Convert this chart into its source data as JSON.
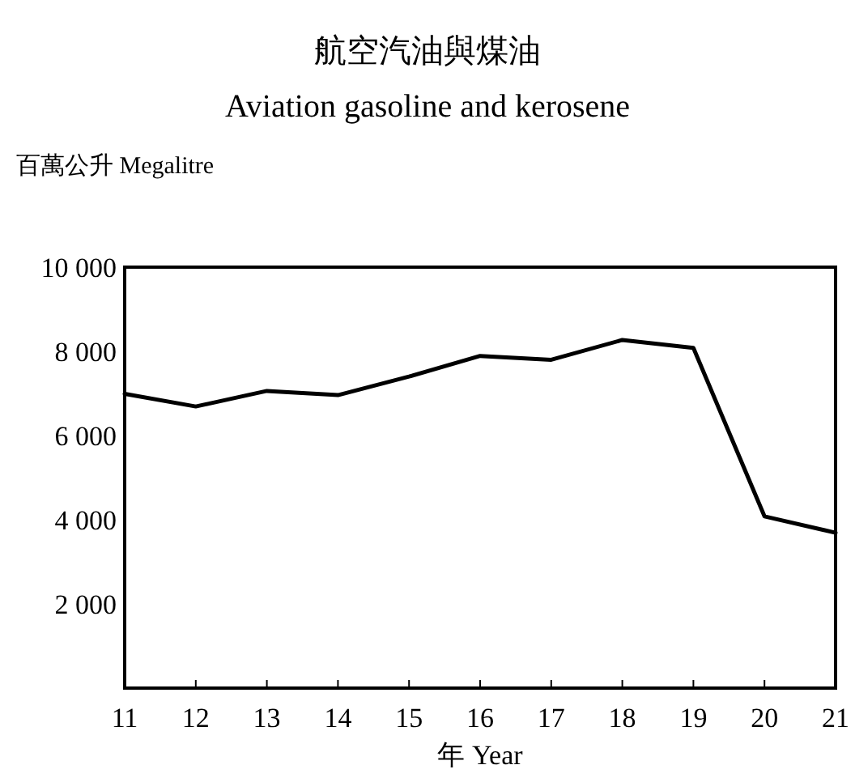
{
  "chart_data": {
    "type": "line",
    "title": "航空汽油與煤油",
    "subtitle": "Aviation gasoline and kerosene",
    "ylabel": "百萬公升 Megalitre",
    "xlabel": "年 Year",
    "x": [
      11,
      12,
      13,
      14,
      15,
      16,
      17,
      18,
      19,
      20,
      21
    ],
    "series": [
      {
        "color": "#000000",
        "values": [
          6990,
          6690,
          7060,
          6960,
          7400,
          7890,
          7800,
          8270,
          8080,
          4080,
          3690
        ]
      }
    ],
    "xlim": [
      11,
      21
    ],
    "ylim": [
      0,
      10000
    ],
    "xticks": [
      11,
      12,
      13,
      14,
      15,
      16,
      17,
      18,
      19,
      20,
      21
    ],
    "yticks": [
      {
        "value": 2000,
        "label": "2 000"
      },
      {
        "value": 4000,
        "label": "4 000"
      },
      {
        "value": 6000,
        "label": "6 000"
      },
      {
        "value": 8000,
        "label": "8 000"
      },
      {
        "value": 10000,
        "label": "10 000"
      }
    ]
  }
}
